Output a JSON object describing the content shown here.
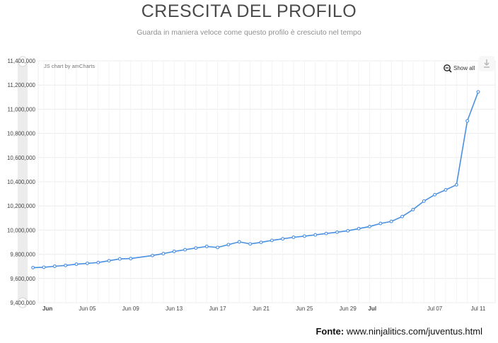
{
  "header": {
    "title": "CRESCITA DEL PROFILO",
    "subtitle": "Guarda in maniera veloce come questo profilo è cresciuto nel tempo"
  },
  "chart_ui": {
    "credit": "JS chart by amCharts",
    "show_all_label": "Show all",
    "zoom_icon": "zoom-out-icon",
    "export_icon": "download-icon"
  },
  "footer": {
    "source_label": "Fonte:",
    "source_url": "www.ninjalitics.com/juventus.html"
  },
  "colors": {
    "line": "#4a90e2",
    "grid": "#ececec",
    "scrollbar": "#e6e6e6"
  },
  "chart_data": {
    "type": "line",
    "title": "CRESCITA DEL PROFILO",
    "subtitle": "Guarda in maniera veloce come questo profilo è cresciuto nel tempo",
    "xlabel": "",
    "ylabel": "",
    "ylim": [
      9400000,
      11400000
    ],
    "yticks": [
      9400000,
      9600000,
      9800000,
      10000000,
      10200000,
      10400000,
      10600000,
      10800000,
      11000000,
      11200000,
      11400000
    ],
    "ytick_labels": [
      "9,400,000",
      "9,600,000",
      "9,800,000",
      "10,000,000",
      "10,200,000",
      "10,400,000",
      "10,600,000",
      "10,800,000",
      "11,000,000",
      "11,200,000",
      "11,400,000"
    ],
    "x_start": "2018-06-01",
    "x_end": "2018-07-11",
    "xticks": [
      {
        "date": "2018-06-01",
        "label": "Jun",
        "bold": true
      },
      {
        "date": "2018-06-05",
        "label": "Jun 05",
        "bold": false
      },
      {
        "date": "2018-06-09",
        "label": "Jun 09",
        "bold": false
      },
      {
        "date": "2018-06-13",
        "label": "Jun 13",
        "bold": false
      },
      {
        "date": "2018-06-17",
        "label": "Jun 17",
        "bold": false
      },
      {
        "date": "2018-06-21",
        "label": "Jun 21",
        "bold": false
      },
      {
        "date": "2018-06-25",
        "label": "Jun 25",
        "bold": false
      },
      {
        "date": "2018-06-29",
        "label": "Jun 29",
        "bold": false
      },
      {
        "date": "2018-07-01",
        "label": "Jul",
        "bold": true
      },
      {
        "date": "2018-07-07",
        "label": "Jul 07",
        "bold": false
      },
      {
        "date": "2018-07-11",
        "label": "Jul 11",
        "bold": false
      }
    ],
    "grid": true,
    "legend": "none",
    "series": [
      {
        "x": [
          "2018-05-31",
          "2018-06-01",
          "2018-06-02",
          "2018-06-03",
          "2018-06-04",
          "2018-06-05",
          "2018-06-06",
          "2018-06-07",
          "2018-06-08",
          "2018-06-09",
          "2018-06-11",
          "2018-06-12",
          "2018-06-13",
          "2018-06-14",
          "2018-06-15",
          "2018-06-16",
          "2018-06-17",
          "2018-06-18",
          "2018-06-19",
          "2018-06-20",
          "2018-06-21",
          "2018-06-22",
          "2018-06-23",
          "2018-06-24",
          "2018-06-25",
          "2018-06-26",
          "2018-06-27",
          "2018-06-28",
          "2018-06-29",
          "2018-06-30",
          "2018-07-01",
          "2018-07-02",
          "2018-07-03",
          "2018-07-04",
          "2018-07-05",
          "2018-07-06",
          "2018-07-07",
          "2018-07-08",
          "2018-07-09",
          "2018-07-10",
          "2018-07-11"
        ],
        "values": [
          9690000,
          9693000,
          9701000,
          9708000,
          9718000,
          9725000,
          9732000,
          9747000,
          9762000,
          9765000,
          9790000,
          9806000,
          9824000,
          9838000,
          9852000,
          9865000,
          9857000,
          9880000,
          9903000,
          9886000,
          9899000,
          9915000,
          9928000,
          9941000,
          9950000,
          9961000,
          9972000,
          9983000,
          9995000,
          10012000,
          10030000,
          10055000,
          10072000,
          10112000,
          10170000,
          10240000,
          10293000,
          10333000,
          10375000,
          10903000,
          11143000
        ]
      }
    ]
  }
}
